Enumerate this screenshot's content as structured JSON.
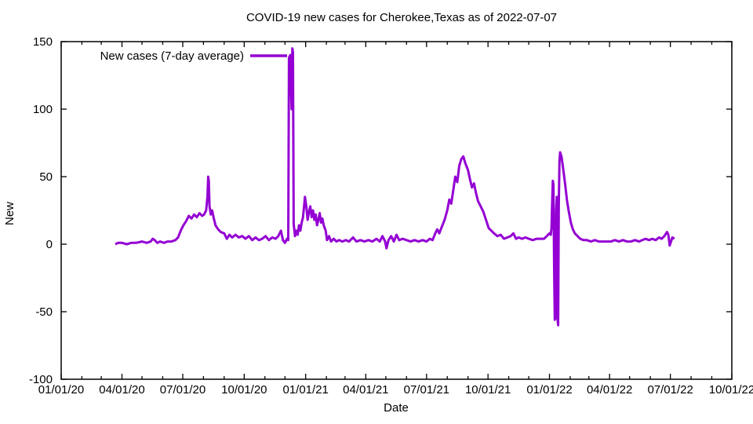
{
  "page": {
    "background": "#ffffff",
    "text_color": "#000000"
  },
  "chart_data": {
    "type": "line",
    "title": "COVID-19 new cases for Cherokee,Texas as of 2022-07-07",
    "xlabel": "Date",
    "ylabel": "New",
    "legend": {
      "label": "New cases (7-day average)",
      "position": "top-left"
    },
    "line_color": "#9400d3",
    "line_width": 3,
    "grid": false,
    "x_range": [
      "2020-01-01",
      "2022-10-01"
    ],
    "ylim": [
      -100,
      150
    ],
    "y_ticks": [
      150,
      100,
      50,
      0,
      -50,
      -100
    ],
    "x_ticks": [
      {
        "date": "2020-01-01",
        "label": "01/01/20"
      },
      {
        "date": "2020-04-01",
        "label": "04/01/20"
      },
      {
        "date": "2020-07-01",
        "label": "07/01/20"
      },
      {
        "date": "2020-10-01",
        "label": "10/01/20"
      },
      {
        "date": "2021-01-01",
        "label": "01/01/21"
      },
      {
        "date": "2021-04-01",
        "label": "04/01/21"
      },
      {
        "date": "2021-07-01",
        "label": "07/01/21"
      },
      {
        "date": "2021-10-01",
        "label": "10/01/21"
      },
      {
        "date": "2022-01-01",
        "label": "01/01/22"
      },
      {
        "date": "2022-04-01",
        "label": "04/01/22"
      },
      {
        "date": "2022-07-01",
        "label": "07/01/22"
      },
      {
        "date": "2022-10-01",
        "label": "10/01/22"
      }
    ],
    "series": [
      {
        "name": "New cases (7-day average)",
        "points": [
          [
            "2020-03-22",
            0
          ],
          [
            "2020-03-26",
            1
          ],
          [
            "2020-04-01",
            1
          ],
          [
            "2020-04-08",
            0
          ],
          [
            "2020-04-15",
            1
          ],
          [
            "2020-04-22",
            1
          ],
          [
            "2020-05-01",
            2
          ],
          [
            "2020-05-08",
            1
          ],
          [
            "2020-05-14",
            2
          ],
          [
            "2020-05-17",
            4
          ],
          [
            "2020-05-20",
            3
          ],
          [
            "2020-05-24",
            1
          ],
          [
            "2020-05-28",
            2
          ],
          [
            "2020-06-03",
            1
          ],
          [
            "2020-06-08",
            2
          ],
          [
            "2020-06-14",
            2
          ],
          [
            "2020-06-20",
            3
          ],
          [
            "2020-06-24",
            5
          ],
          [
            "2020-06-28",
            10
          ],
          [
            "2020-07-02",
            14
          ],
          [
            "2020-07-06",
            17
          ],
          [
            "2020-07-10",
            21
          ],
          [
            "2020-07-14",
            19
          ],
          [
            "2020-07-18",
            22
          ],
          [
            "2020-07-22",
            20
          ],
          [
            "2020-07-26",
            23
          ],
          [
            "2020-07-30",
            21
          ],
          [
            "2020-08-02",
            22
          ],
          [
            "2020-08-05",
            25
          ],
          [
            "2020-08-07",
            35
          ],
          [
            "2020-08-08",
            50
          ],
          [
            "2020-08-09",
            47
          ],
          [
            "2020-08-10",
            28
          ],
          [
            "2020-08-12",
            22
          ],
          [
            "2020-08-14",
            25
          ],
          [
            "2020-08-16",
            20
          ],
          [
            "2020-08-19",
            14
          ],
          [
            "2020-08-23",
            11
          ],
          [
            "2020-08-27",
            9
          ],
          [
            "2020-09-01",
            8
          ],
          [
            "2020-09-05",
            4
          ],
          [
            "2020-09-09",
            7
          ],
          [
            "2020-09-13",
            5
          ],
          [
            "2020-09-18",
            7
          ],
          [
            "2020-09-23",
            5
          ],
          [
            "2020-09-28",
            6
          ],
          [
            "2020-10-03",
            4
          ],
          [
            "2020-10-08",
            6
          ],
          [
            "2020-10-13",
            3
          ],
          [
            "2020-10-18",
            5
          ],
          [
            "2020-10-23",
            3
          ],
          [
            "2020-10-28",
            4
          ],
          [
            "2020-11-02",
            6
          ],
          [
            "2020-11-07",
            3
          ],
          [
            "2020-11-12",
            5
          ],
          [
            "2020-11-17",
            4
          ],
          [
            "2020-11-21",
            6
          ],
          [
            "2020-11-25",
            10
          ],
          [
            "2020-11-28",
            3
          ],
          [
            "2020-12-01",
            1
          ],
          [
            "2020-12-04",
            4
          ],
          [
            "2020-12-06",
            3
          ],
          [
            "2020-12-07",
            138
          ],
          [
            "2020-12-09",
            140
          ],
          [
            "2020-12-10",
            118
          ],
          [
            "2020-12-11",
            100
          ],
          [
            "2020-12-12",
            145
          ],
          [
            "2020-12-13",
            142
          ],
          [
            "2020-12-14",
            15
          ],
          [
            "2020-12-16",
            6
          ],
          [
            "2020-12-18",
            10
          ],
          [
            "2020-12-20",
            7
          ],
          [
            "2020-12-22",
            14
          ],
          [
            "2020-12-24",
            10
          ],
          [
            "2020-12-26",
            16
          ],
          [
            "2020-12-28",
            20
          ],
          [
            "2020-12-30",
            30
          ],
          [
            "2020-12-31",
            35
          ],
          [
            "2021-01-02",
            28
          ],
          [
            "2021-01-04",
            18
          ],
          [
            "2021-01-06",
            24
          ],
          [
            "2021-01-08",
            28
          ],
          [
            "2021-01-10",
            20
          ],
          [
            "2021-01-12",
            25
          ],
          [
            "2021-01-14",
            18
          ],
          [
            "2021-01-16",
            22
          ],
          [
            "2021-01-18",
            14
          ],
          [
            "2021-01-20",
            18
          ],
          [
            "2021-01-22",
            23
          ],
          [
            "2021-01-24",
            16
          ],
          [
            "2021-01-26",
            19
          ],
          [
            "2021-01-28",
            14
          ],
          [
            "2021-01-31",
            10
          ],
          [
            "2021-02-02",
            3
          ],
          [
            "2021-02-05",
            6
          ],
          [
            "2021-02-08",
            2
          ],
          [
            "2021-02-12",
            4
          ],
          [
            "2021-02-16",
            2
          ],
          [
            "2021-02-20",
            3
          ],
          [
            "2021-02-25",
            2
          ],
          [
            "2021-03-02",
            3
          ],
          [
            "2021-03-07",
            2
          ],
          [
            "2021-03-13",
            5
          ],
          [
            "2021-03-18",
            2
          ],
          [
            "2021-03-24",
            3
          ],
          [
            "2021-03-30",
            2
          ],
          [
            "2021-04-05",
            3
          ],
          [
            "2021-04-11",
            2
          ],
          [
            "2021-04-17",
            4
          ],
          [
            "2021-04-22",
            2
          ],
          [
            "2021-04-26",
            6
          ],
          [
            "2021-04-30",
            2
          ],
          [
            "2021-05-02",
            -3
          ],
          [
            "2021-05-05",
            3
          ],
          [
            "2021-05-09",
            6
          ],
          [
            "2021-05-13",
            2
          ],
          [
            "2021-05-17",
            7
          ],
          [
            "2021-05-21",
            3
          ],
          [
            "2021-05-26",
            4
          ],
          [
            "2021-06-01",
            3
          ],
          [
            "2021-06-07",
            2
          ],
          [
            "2021-06-13",
            3
          ],
          [
            "2021-06-19",
            2
          ],
          [
            "2021-06-25",
            3
          ],
          [
            "2021-07-01",
            2
          ],
          [
            "2021-07-06",
            4
          ],
          [
            "2021-07-10",
            3
          ],
          [
            "2021-07-14",
            8
          ],
          [
            "2021-07-17",
            11
          ],
          [
            "2021-07-20",
            8
          ],
          [
            "2021-07-24",
            13
          ],
          [
            "2021-07-28",
            18
          ],
          [
            "2021-08-01",
            25
          ],
          [
            "2021-08-04",
            33
          ],
          [
            "2021-08-07",
            30
          ],
          [
            "2021-08-10",
            40
          ],
          [
            "2021-08-13",
            50
          ],
          [
            "2021-08-16",
            46
          ],
          [
            "2021-08-19",
            58
          ],
          [
            "2021-08-22",
            63
          ],
          [
            "2021-08-25",
            65
          ],
          [
            "2021-08-28",
            60
          ],
          [
            "2021-09-01",
            55
          ],
          [
            "2021-09-04",
            48
          ],
          [
            "2021-09-07",
            42
          ],
          [
            "2021-09-10",
            45
          ],
          [
            "2021-09-13",
            38
          ],
          [
            "2021-09-16",
            32
          ],
          [
            "2021-09-20",
            28
          ],
          [
            "2021-09-24",
            24
          ],
          [
            "2021-09-28",
            18
          ],
          [
            "2021-10-02",
            12
          ],
          [
            "2021-10-06",
            10
          ],
          [
            "2021-10-10",
            8
          ],
          [
            "2021-10-15",
            6
          ],
          [
            "2021-10-20",
            7
          ],
          [
            "2021-10-25",
            4
          ],
          [
            "2021-10-30",
            5
          ],
          [
            "2021-11-04",
            6
          ],
          [
            "2021-11-08",
            8
          ],
          [
            "2021-11-12",
            4
          ],
          [
            "2021-11-16",
            5
          ],
          [
            "2021-11-21",
            4
          ],
          [
            "2021-11-26",
            5
          ],
          [
            "2021-12-01",
            4
          ],
          [
            "2021-12-07",
            3
          ],
          [
            "2021-12-13",
            4
          ],
          [
            "2021-12-19",
            4
          ],
          [
            "2021-12-24",
            4
          ],
          [
            "2021-12-28",
            6
          ],
          [
            "2022-01-01",
            8
          ],
          [
            "2022-01-03",
            7
          ],
          [
            "2022-01-04",
            12
          ],
          [
            "2022-01-05",
            30
          ],
          [
            "2022-01-06",
            47
          ],
          [
            "2022-01-07",
            44
          ],
          [
            "2022-01-08",
            -20
          ],
          [
            "2022-01-09",
            -56
          ],
          [
            "2022-01-10",
            -54
          ],
          [
            "2022-01-11",
            25
          ],
          [
            "2022-01-12",
            35
          ],
          [
            "2022-01-13",
            -55
          ],
          [
            "2022-01-14",
            -60
          ],
          [
            "2022-01-15",
            30
          ],
          [
            "2022-01-16",
            62
          ],
          [
            "2022-01-17",
            68
          ],
          [
            "2022-01-19",
            65
          ],
          [
            "2022-01-21",
            58
          ],
          [
            "2022-01-23",
            50
          ],
          [
            "2022-01-25",
            42
          ],
          [
            "2022-01-27",
            33
          ],
          [
            "2022-01-30",
            24
          ],
          [
            "2022-02-02",
            16
          ],
          [
            "2022-02-05",
            11
          ],
          [
            "2022-02-08",
            8
          ],
          [
            "2022-02-12",
            6
          ],
          [
            "2022-02-16",
            4
          ],
          [
            "2022-02-21",
            3
          ],
          [
            "2022-02-26",
            3
          ],
          [
            "2022-03-04",
            2
          ],
          [
            "2022-03-10",
            3
          ],
          [
            "2022-03-16",
            2
          ],
          [
            "2022-03-22",
            2
          ],
          [
            "2022-03-28",
            2
          ],
          [
            "2022-04-03",
            2
          ],
          [
            "2022-04-09",
            3
          ],
          [
            "2022-04-15",
            2
          ],
          [
            "2022-04-21",
            3
          ],
          [
            "2022-04-27",
            2
          ],
          [
            "2022-05-03",
            2
          ],
          [
            "2022-05-09",
            3
          ],
          [
            "2022-05-15",
            2
          ],
          [
            "2022-05-20",
            3
          ],
          [
            "2022-05-25",
            4
          ],
          [
            "2022-05-30",
            3
          ],
          [
            "2022-06-04",
            4
          ],
          [
            "2022-06-09",
            3
          ],
          [
            "2022-06-14",
            5
          ],
          [
            "2022-06-18",
            4
          ],
          [
            "2022-06-22",
            6
          ],
          [
            "2022-06-26",
            9
          ],
          [
            "2022-06-28",
            7
          ],
          [
            "2022-06-30",
            -1
          ],
          [
            "2022-07-02",
            2
          ],
          [
            "2022-07-04",
            5
          ],
          [
            "2022-07-07",
            4
          ]
        ]
      }
    ]
  }
}
